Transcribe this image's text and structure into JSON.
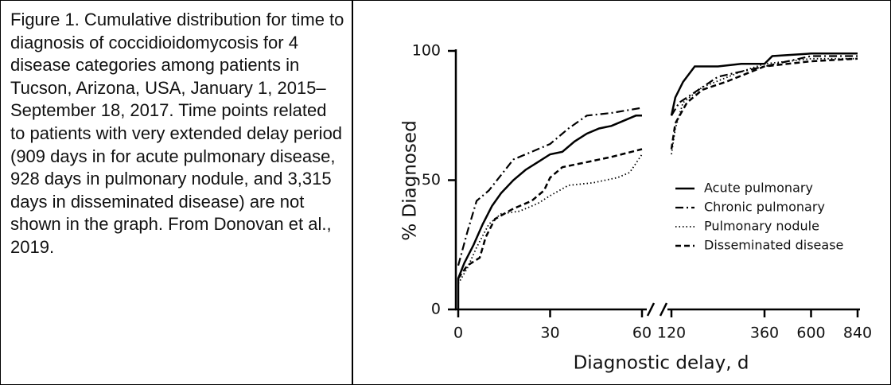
{
  "caption": "Figure 1.  Cumulative distribution for time to diagnosis of coccidioidomycosis for 4 disease categories among patients in Tucson, Arizona, USA, January 1, 2015–September 18, 2017. Time points related to patients with very extended delay period (909 days in for acute pulmonary disease, 928 days in pulmonary nodule, and 3,315 days in disseminated disease) are not shown in the graph. From Donovan et al., 2019.",
  "chart_data": {
    "type": "line",
    "x_label": "Diagnostic delay, d",
    "y_label": "% Diagnosed",
    "ylim": [
      0,
      100
    ],
    "yticks": [
      0,
      50,
      100
    ],
    "x_segments": [
      {
        "xlim": [
          0,
          60
        ],
        "xticks": [
          0,
          30,
          60
        ]
      },
      {
        "xlim": [
          120,
          840
        ],
        "xticks": [
          120,
          360,
          600,
          840
        ]
      }
    ],
    "legend": "right",
    "series": [
      {
        "name": "Acute pulmonary",
        "color": "#000000",
        "dash": "solid",
        "x": [
          0,
          0,
          2,
          5,
          8,
          11,
          14,
          18,
          22,
          26,
          30,
          34,
          38,
          42,
          46,
          50,
          54,
          58,
          60,
          null,
          120,
          130,
          150,
          180,
          240,
          300,
          360,
          400,
          600,
          840
        ],
        "values": [
          0,
          12,
          18,
          25,
          33,
          40,
          45,
          50,
          54,
          57,
          60,
          61,
          65,
          68,
          70,
          71,
          73,
          75,
          75,
          null,
          75,
          82,
          88,
          94,
          94,
          95,
          95,
          98,
          99,
          99
        ]
      },
      {
        "name": "Chronic pulmonary",
        "color": "#000000",
        "dash": "dashdot",
        "x": [
          0,
          3,
          6,
          10,
          14,
          18,
          24,
          30,
          36,
          42,
          50,
          60,
          null,
          120,
          140,
          180,
          240,
          360,
          480,
          600,
          840
        ],
        "values": [
          17,
          30,
          42,
          46,
          52,
          58,
          61,
          64,
          70,
          75,
          76,
          78,
          null,
          75,
          80,
          84,
          90,
          94,
          96,
          98,
          98
        ]
      },
      {
        "name": "Pulmonary nodule",
        "color": "#000000",
        "dash": "dotted",
        "x": [
          0,
          3,
          6,
          10,
          14,
          20,
          26,
          30,
          36,
          44,
          52,
          56,
          60,
          null,
          120,
          130,
          150,
          200,
          300,
          360,
          600,
          840
        ],
        "values": [
          10,
          16,
          24,
          33,
          37,
          38,
          41,
          44,
          48,
          49,
          51,
          53,
          60,
          null,
          60,
          70,
          80,
          86,
          92,
          95,
          97,
          97
        ]
      },
      {
        "name": "Disseminated disease",
        "color": "#000000",
        "dash": "dashed",
        "x": [
          0,
          3,
          7,
          9,
          12,
          18,
          24,
          28,
          30,
          34,
          42,
          50,
          60,
          null,
          120,
          130,
          160,
          200,
          260,
          360,
          600,
          840
        ],
        "values": [
          12,
          17,
          20,
          28,
          35,
          39,
          42,
          46,
          51,
          55,
          57,
          59,
          62,
          null,
          62,
          72,
          80,
          85,
          88,
          94,
          96,
          97
        ]
      }
    ]
  }
}
